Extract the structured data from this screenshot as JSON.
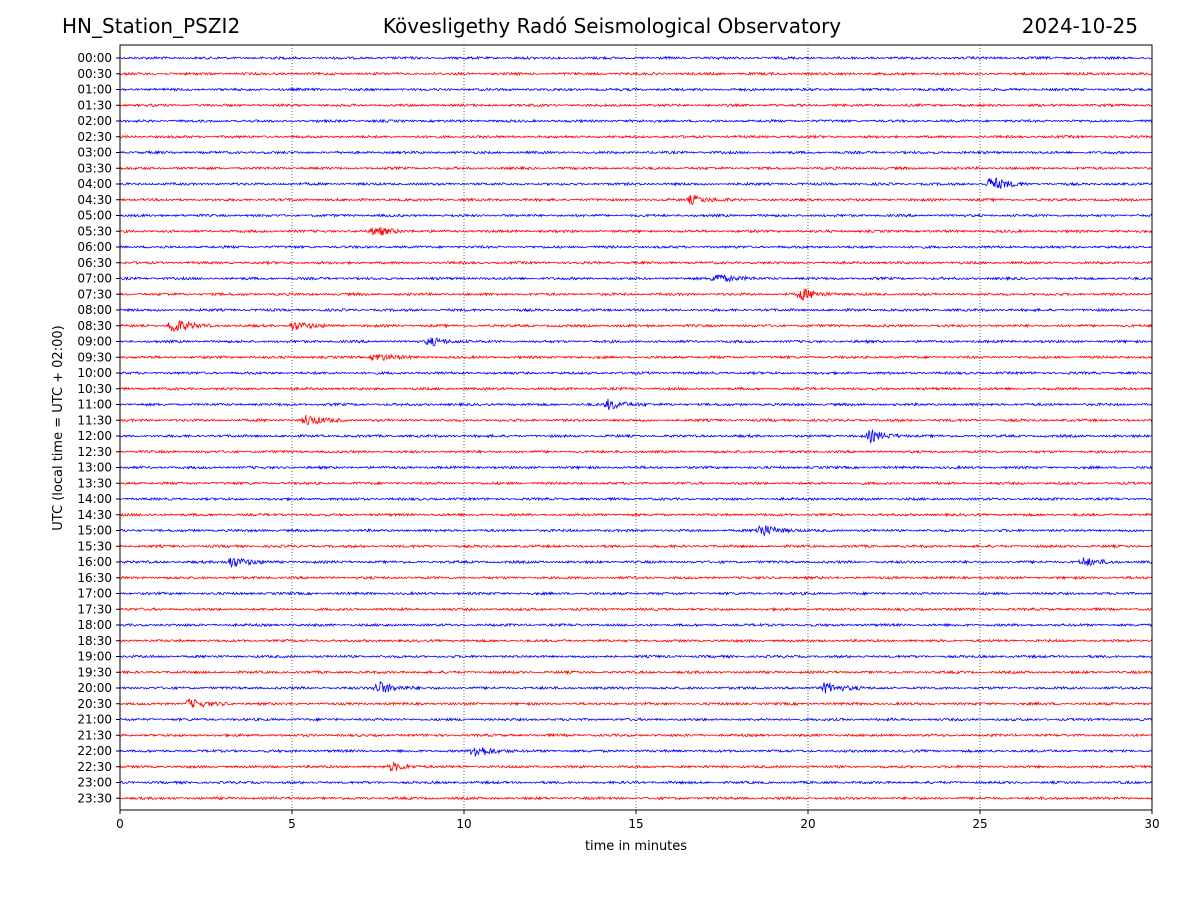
{
  "header": {
    "station": "HN_Station_PSZI2",
    "observatory": "Kövesligethy Radó Seismological Observatory",
    "date": "2024-10-25"
  },
  "chart_data": {
    "type": "line",
    "title": "Kövesligethy Radó Seismological Observatory",
    "xlabel": "time in minutes",
    "ylabel": "UTC (local time = UTC + 02:00)",
    "xlim": [
      0,
      30
    ],
    "xticks": [
      0,
      5,
      10,
      15,
      20,
      25,
      30
    ],
    "grid": "vertical dotted at x ticks",
    "row_labels": [
      "00:00",
      "00:30",
      "01:00",
      "01:30",
      "02:00",
      "02:30",
      "03:00",
      "03:30",
      "04:00",
      "04:30",
      "05:00",
      "05:30",
      "06:00",
      "06:30",
      "07:00",
      "07:30",
      "08:00",
      "08:30",
      "09:00",
      "09:30",
      "10:00",
      "10:30",
      "11:00",
      "11:30",
      "12:00",
      "12:30",
      "13:00",
      "13:30",
      "14:00",
      "14:30",
      "15:00",
      "15:30",
      "16:00",
      "16:30",
      "17:00",
      "17:30",
      "18:00",
      "18:30",
      "19:00",
      "19:30",
      "20:00",
      "20:30",
      "21:00",
      "21:30",
      "22:00",
      "22:30",
      "23:00",
      "23:30"
    ],
    "series_colors": [
      "#0000ff",
      "#ff0000"
    ],
    "noise_level": 1.0,
    "events": [
      {
        "row": "04:00",
        "minute": 25.3,
        "amplitude": 2.2
      },
      {
        "row": "04:30",
        "minute": 16.6,
        "amplitude": 1.4
      },
      {
        "row": "05:30",
        "minute": 7.4,
        "amplitude": 1.5
      },
      {
        "row": "07:00",
        "minute": 17.3,
        "amplitude": 1.6
      },
      {
        "row": "07:30",
        "minute": 19.8,
        "amplitude": 1.8
      },
      {
        "row": "08:30",
        "minute": 1.5,
        "amplitude": 2.4
      },
      {
        "row": "08:30",
        "minute": 5.0,
        "amplitude": 1.3
      },
      {
        "row": "09:00",
        "minute": 9.0,
        "amplitude": 1.3
      },
      {
        "row": "09:30",
        "minute": 7.4,
        "amplitude": 1.3
      },
      {
        "row": "11:00",
        "minute": 14.2,
        "amplitude": 1.6
      },
      {
        "row": "11:30",
        "minute": 5.4,
        "amplitude": 1.6
      },
      {
        "row": "12:00",
        "minute": 21.8,
        "amplitude": 1.7
      },
      {
        "row": "15:00",
        "minute": 18.6,
        "amplitude": 2.0
      },
      {
        "row": "16:00",
        "minute": 3.2,
        "amplitude": 1.8
      },
      {
        "row": "16:00",
        "minute": 28.0,
        "amplitude": 1.3
      },
      {
        "row": "20:00",
        "minute": 7.5,
        "amplitude": 2.1
      },
      {
        "row": "20:00",
        "minute": 20.5,
        "amplitude": 1.8
      },
      {
        "row": "20:30",
        "minute": 2.0,
        "amplitude": 1.4
      },
      {
        "row": "22:00",
        "minute": 10.3,
        "amplitude": 2.0
      },
      {
        "row": "22:30",
        "minute": 7.9,
        "amplitude": 1.2
      }
    ]
  }
}
